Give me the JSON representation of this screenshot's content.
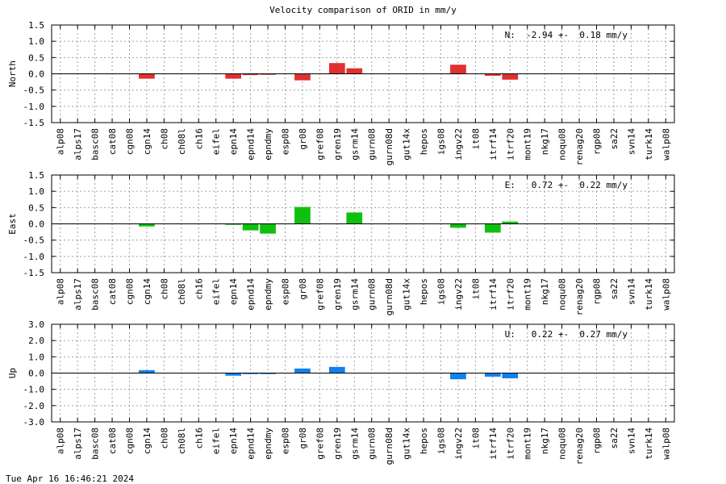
{
  "title": "Velocity comparison of ORID in mm/y",
  "footer": "Tue Apr 16 16:46:21 2024",
  "chart_data": [
    {
      "type": "bar",
      "ylabel": "North",
      "color": "#e03030",
      "ylim": [
        -1.5,
        1.5
      ],
      "yticks": [
        "1.5",
        "1.0",
        "0.5",
        "0.0",
        "-0.5",
        "-1.0",
        "-1.5"
      ],
      "grid": true,
      "annotation": "N:  -2.94 +-  0.18 mm/y",
      "categories": [
        "alp08",
        "alps17",
        "basc08",
        "cat08",
        "cgn08",
        "cgn14",
        "ch08",
        "ch08l",
        "ch16",
        "eifel",
        "epn14",
        "epnd14",
        "epndmy",
        "esp08",
        "gr08",
        "gref08",
        "gren19",
        "gsrm14",
        "gurn08",
        "gurn08d",
        "gut14x",
        "hepos",
        "igs08",
        "ingv22",
        "it08",
        "itrf14",
        "itrf20",
        "mont19",
        "nkg17",
        "noqu08",
        "renag20",
        "rgp08",
        "sa22",
        "svn14",
        "turk14",
        "walp08"
      ],
      "values": [
        0,
        0,
        0,
        0,
        0,
        -0.15,
        0,
        0,
        0,
        0,
        -0.15,
        -0.04,
        -0.03,
        0,
        -0.2,
        0,
        0.33,
        0.17,
        0,
        0,
        0,
        0,
        0,
        0.28,
        0,
        -0.06,
        -0.18,
        0,
        0,
        0,
        0,
        0,
        0,
        0,
        0,
        0
      ]
    },
    {
      "type": "bar",
      "ylabel": "East",
      "color": "#10c010",
      "ylim": [
        -1.5,
        1.5
      ],
      "yticks": [
        "1.5",
        "1.0",
        "0.5",
        "0.0",
        "-0.5",
        "-1.0",
        "-1.5"
      ],
      "grid": true,
      "annotation": "E:   0.72 +-  0.22 mm/y",
      "categories": [
        "alp08",
        "alps17",
        "basc08",
        "cat08",
        "cgn08",
        "cgn14",
        "ch08",
        "ch08l",
        "ch16",
        "eifel",
        "epn14",
        "epnd14",
        "epndmy",
        "esp08",
        "gr08",
        "gref08",
        "gren19",
        "gsrm14",
        "gurn08",
        "gurn08d",
        "gut14x",
        "hepos",
        "igs08",
        "ingv22",
        "it08",
        "itrf14",
        "itrf20",
        "mont19",
        "nkg17",
        "noqu08",
        "renag20",
        "rgp08",
        "sa22",
        "svn14",
        "turk14",
        "walp08"
      ],
      "values": [
        0,
        0,
        0,
        0,
        0,
        -0.08,
        0,
        0,
        0,
        0,
        -0.03,
        -0.2,
        -0.3,
        0,
        0.52,
        0,
        0,
        0.35,
        0,
        0,
        0,
        0,
        0,
        -0.12,
        0,
        -0.27,
        0.07,
        0,
        0,
        0,
        0,
        0,
        0,
        0,
        0,
        0
      ]
    },
    {
      "type": "bar",
      "ylabel": "Up",
      "color": "#1080f0",
      "ylim": [
        -3.0,
        3.0
      ],
      "yticks": [
        "3.0",
        "2.0",
        "1.0",
        "0.0",
        "-1.0",
        "-2.0",
        "-3.0"
      ],
      "grid": true,
      "annotation": "U:   0.22 +-  0.27 mm/y",
      "categories": [
        "alp08",
        "alps17",
        "basc08",
        "cat08",
        "cgn08",
        "cgn14",
        "ch08",
        "ch08l",
        "ch16",
        "eifel",
        "epn14",
        "epnd14",
        "epndmy",
        "esp08",
        "gr08",
        "gref08",
        "gren19",
        "gsrm14",
        "gurn08",
        "gurn08d",
        "gut14x",
        "hepos",
        "igs08",
        "ingv22",
        "it08",
        "itrf14",
        "itrf20",
        "mont19",
        "nkg17",
        "noqu08",
        "renag20",
        "rgp08",
        "sa22",
        "svn14",
        "turk14",
        "walp08"
      ],
      "values": [
        0,
        0,
        0,
        0,
        0,
        0.18,
        0,
        0,
        0,
        0,
        -0.16,
        -0.06,
        -0.06,
        0,
        0.28,
        0,
        0.38,
        0,
        0,
        0,
        0,
        0,
        0,
        -0.38,
        0,
        -0.22,
        -0.32,
        0,
        0,
        0,
        0,
        0,
        0,
        0,
        0,
        0
      ]
    }
  ]
}
